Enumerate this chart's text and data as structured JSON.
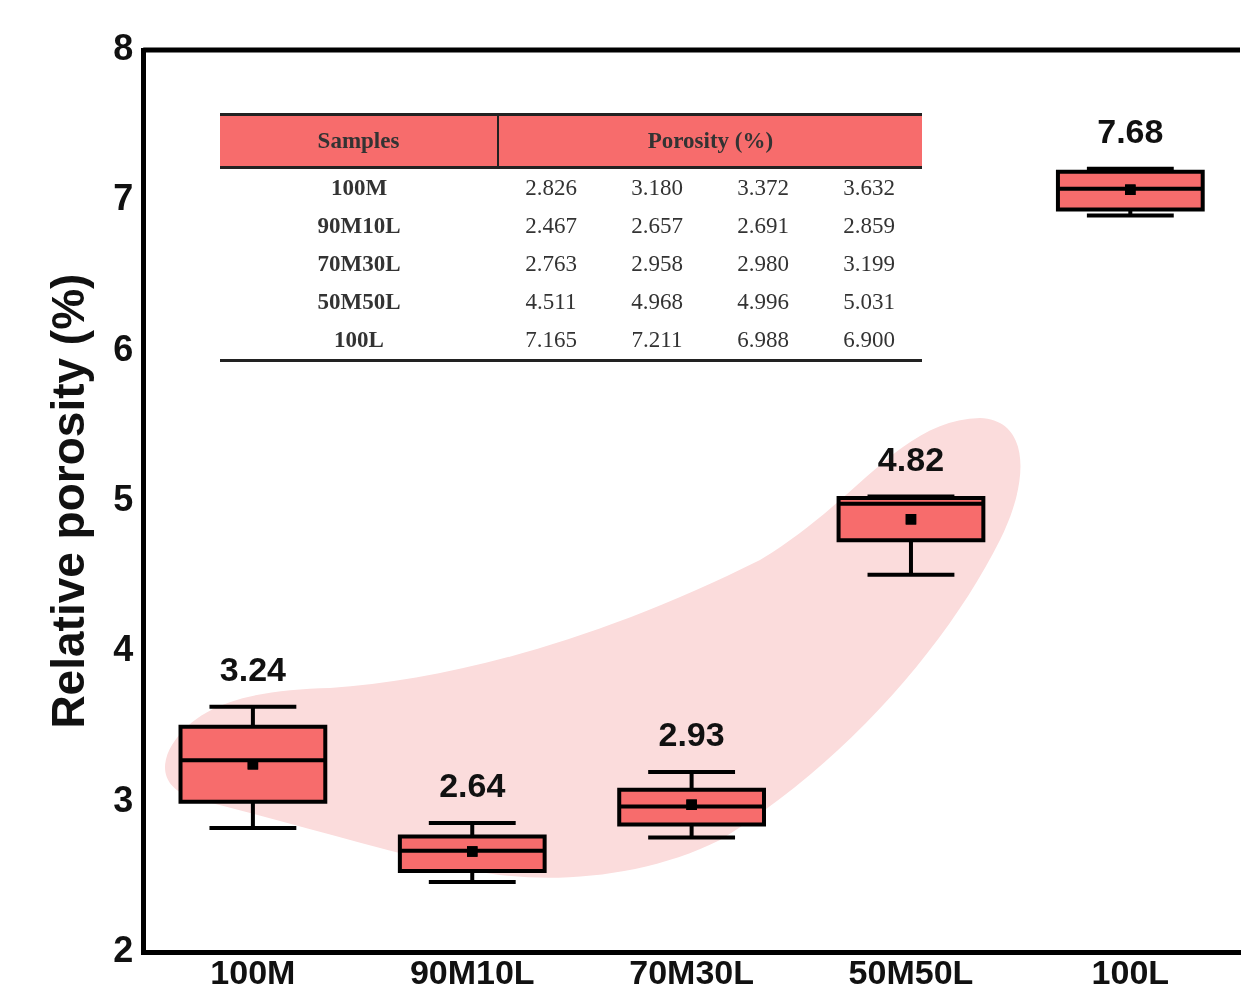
{
  "chart_data": {
    "type": "box",
    "ylabel": "Relative porosity (%)",
    "categories": [
      "100M",
      "90M10L",
      "70M30L",
      "50M50L",
      "100L"
    ],
    "ylim": [
      2,
      8
    ],
    "yticks": [
      2,
      3,
      4,
      5,
      6,
      7,
      8
    ],
    "marker": "square",
    "series": [
      {
        "color": "#f76c6c",
        "boxes": [
          {
            "low": 2.826,
            "q1": 3.0,
            "median": 3.276,
            "q3": 3.5,
            "high": 3.632,
            "mean": 3.25
          },
          {
            "low": 2.467,
            "q1": 2.54,
            "median": 2.674,
            "q3": 2.77,
            "high": 2.859,
            "mean": 2.67
          },
          {
            "low": 2.763,
            "q1": 2.85,
            "median": 2.969,
            "q3": 3.08,
            "high": 3.199,
            "mean": 2.98
          },
          {
            "low": 4.511,
            "q1": 4.74,
            "median": 4.982,
            "q3": 5.02,
            "high": 5.031,
            "mean": 4.88
          },
          {
            "low": 6.9,
            "q1": 6.94,
            "median": 7.077,
            "q3": 7.19,
            "high": 7.211,
            "mean": 7.07
          }
        ]
      }
    ],
    "annotations": [
      "Samples",
      "Porosity (%)",
      "100M",
      "2.826",
      "3.180",
      "3.372",
      "3.632",
      "90M10L",
      "2.467",
      "2.657",
      "2.691",
      "2.859",
      "70M30L",
      "2.763",
      "2.958",
      "2.980",
      "3.199",
      "50M50L",
      "4.511",
      "4.968",
      "4.996",
      "5.031",
      "100L",
      "7.165",
      "7.211",
      "6.988",
      "6.900",
      "3.24",
      "2.64",
      "2.93",
      "4.82",
      "7.68"
    ]
  }
}
